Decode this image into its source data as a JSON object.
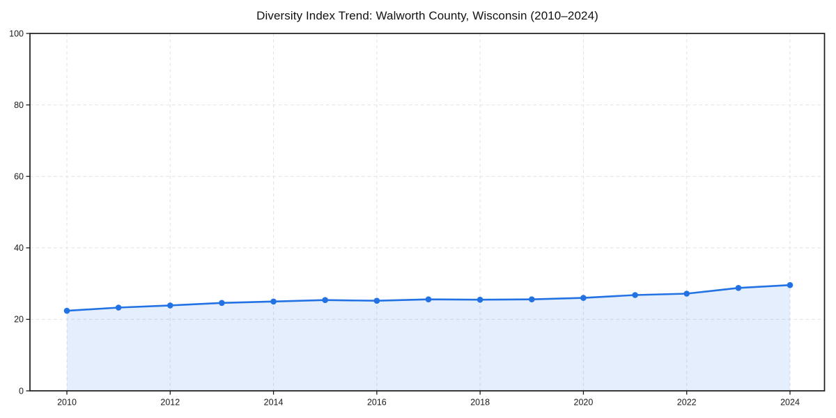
{
  "figure": {
    "background_color": "#ffffff"
  },
  "chart_data": {
    "type": "line",
    "title": "Diversity Index Trend: Walworth County, Wisconsin (2010–2024)",
    "x": [
      2010,
      2011,
      2012,
      2013,
      2014,
      2015,
      2016,
      2017,
      2018,
      2019,
      2020,
      2021,
      2022,
      2023,
      2024
    ],
    "series": [
      {
        "name": "Diversity Index",
        "values": [
          22.4,
          23.3,
          23.9,
          24.6,
          25.0,
          25.4,
          25.2,
          25.6,
          25.5,
          25.6,
          26.0,
          26.8,
          27.2,
          28.8,
          29.6
        ]
      }
    ],
    "xlabel": "",
    "ylabel": "",
    "xticks": [
      2010,
      2012,
      2014,
      2016,
      2018,
      2020,
      2022,
      2024
    ],
    "yticks": [
      0,
      20,
      40,
      60,
      80,
      100
    ],
    "ylim": [
      0,
      100
    ],
    "grid": true,
    "grid_style": "dashed",
    "grid_color": "#e2e2e2",
    "legend": false,
    "line_color": "#2272e4",
    "marker": "circle",
    "fill_under_line": true,
    "fill_opacity": 0.12,
    "spine_color": "#1a1a1a",
    "tick_label_color": "#1a1a1a"
  }
}
